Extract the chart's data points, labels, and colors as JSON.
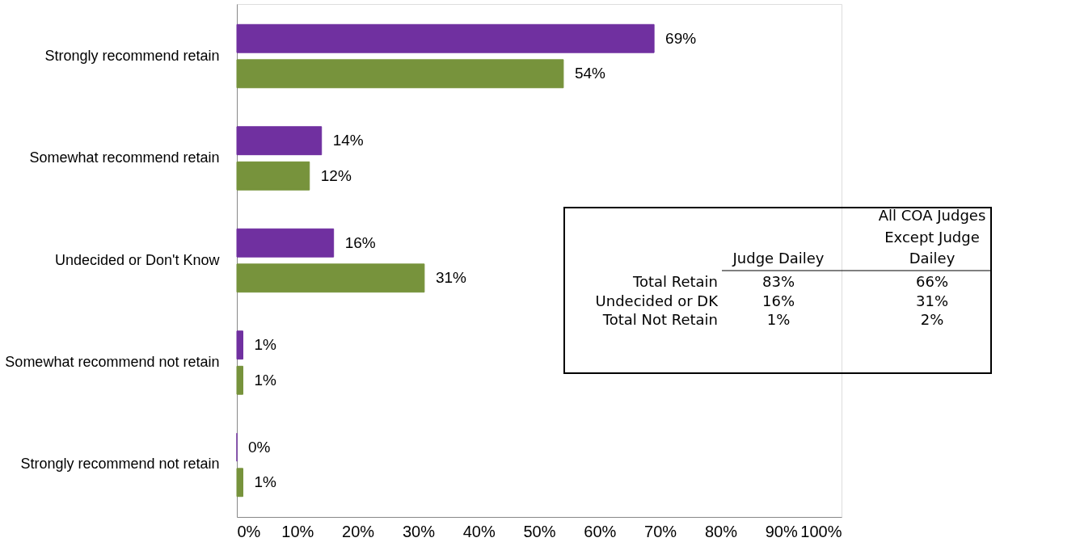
{
  "chart_data": {
    "type": "bar",
    "orientation": "horizontal",
    "categories": [
      "Strongly recommend retain",
      "Somewhat recommend retain",
      "Undecided or Don't Know",
      "Somewhat recommend not retain",
      "Strongly recommend not retain"
    ],
    "series": [
      {
        "color": "#7030a0",
        "values": [
          69,
          14,
          16,
          1,
          0
        ],
        "value_labels": [
          "69%",
          "14%",
          "16%",
          "1%",
          "0%"
        ]
      },
      {
        "color": "#77933c",
        "values": [
          54,
          12,
          31,
          1,
          1
        ],
        "value_labels": [
          "54%",
          "12%",
          "31%",
          "1%",
          "1%"
        ]
      }
    ],
    "xlim": [
      0,
      100
    ],
    "xticks": [
      {
        "value": 0,
        "label": "0%"
      },
      {
        "value": 10,
        "label": "10%"
      },
      {
        "value": 20,
        "label": "20%"
      },
      {
        "value": 30,
        "label": "30%"
      },
      {
        "value": 40,
        "label": "40%"
      },
      {
        "value": 50,
        "label": "50%"
      },
      {
        "value": 60,
        "label": "60%"
      },
      {
        "value": 70,
        "label": "70%"
      },
      {
        "value": 80,
        "label": "80%"
      },
      {
        "value": 90,
        "label": "90%"
      },
      {
        "value": 100,
        "label": "100%"
      }
    ],
    "grid": false,
    "legend": false,
    "annotations": [
      "All COA Judges",
      "Except Judge",
      "Judge Dailey",
      "Dailey",
      "Total Retain",
      "83%",
      "66%",
      "Undecided or DK",
      "16%",
      "31%",
      "Total Not Retain",
      "1%",
      "2%"
    ]
  }
}
